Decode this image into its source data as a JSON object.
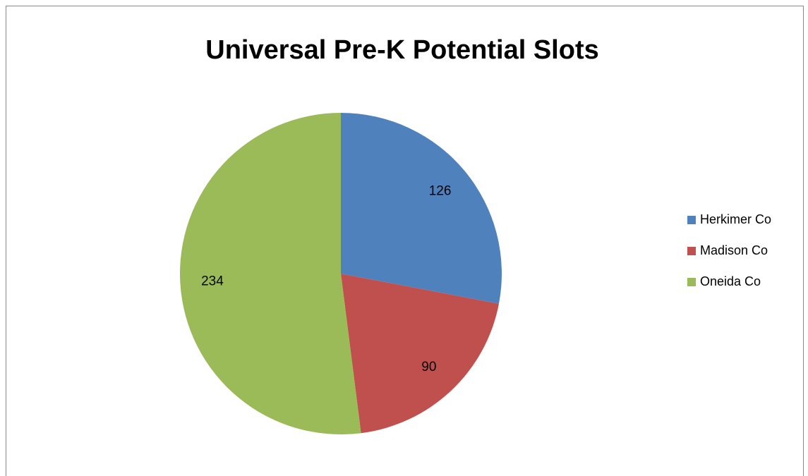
{
  "chart_data": {
    "type": "pie",
    "title": "Universal Pre-K Potential Slots",
    "categories": [
      "Herkimer Co",
      "Madison Co",
      "Oneida Co"
    ],
    "values": [
      126,
      90,
      234
    ],
    "colors": [
      "#4f81bd",
      "#c0504d",
      "#9bbb59"
    ],
    "legend": "right"
  }
}
